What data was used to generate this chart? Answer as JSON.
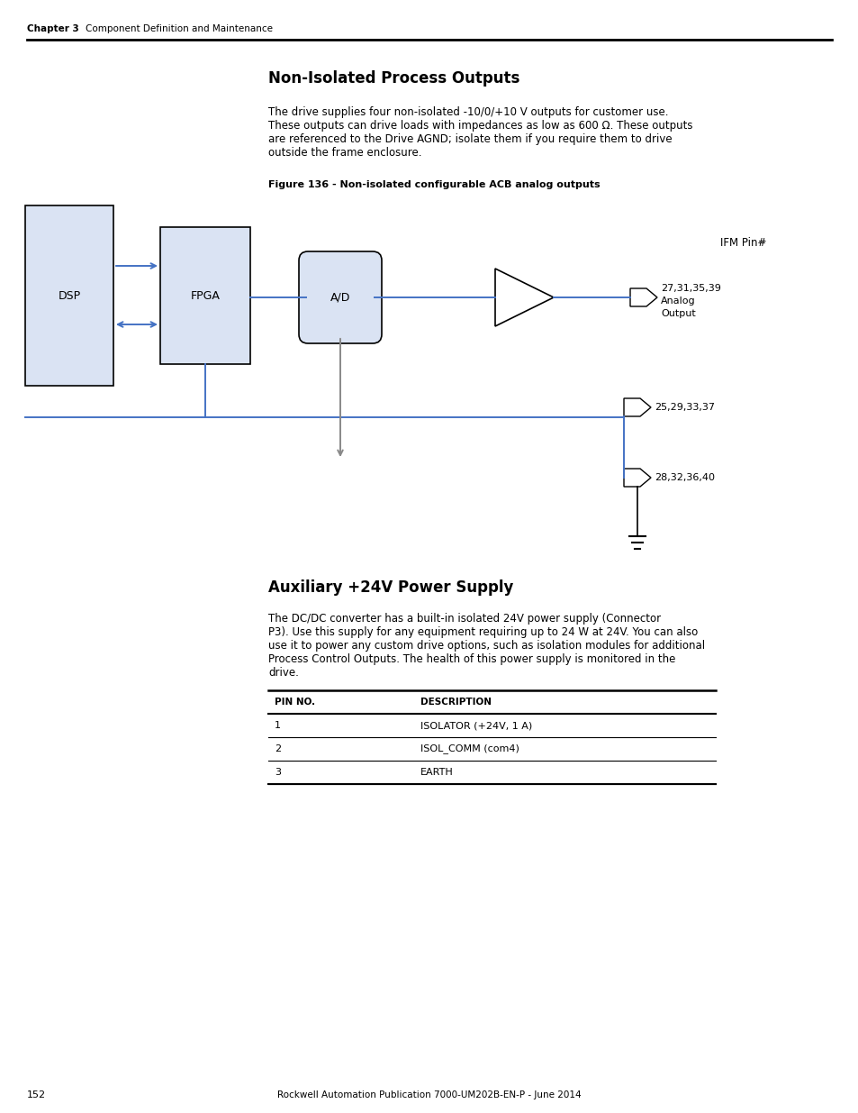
{
  "page_header_chapter": "Chapter 3",
  "page_header_section": "Component Definition and Maintenance",
  "section1_title": "Non-Isolated Process Outputs",
  "section1_para1": "The drive supplies four non-isolated -10/0/+10 V outputs for customer use.",
  "section1_para2": "These outputs can drive loads with impedances as low as 600 Ω. These outputs",
  "section1_para3": "are referenced to the Drive AGND; isolate them if you require them to drive",
  "section1_para4": "outside the frame enclosure.",
  "figure_caption": "Figure 136 - Non-isolated configurable ACB analog outputs",
  "diagram": {
    "dsp_label": "DSP",
    "fpga_label": "FPGA",
    "ad_label": "A/D",
    "ifm_label": "IFM Pin#",
    "pin1_label": "27,31,35,39",
    "pin1_sublabel1": "Analog",
    "pin1_sublabel2": "Output",
    "pin2_label": "25,29,33,37",
    "pin3_label": "28,32,36,40",
    "line_color": "#4472C4",
    "box_fill": "#DAE3F3",
    "box_stroke": "#000000"
  },
  "section2_title": "Auxiliary +24V Power Supply",
  "section2_para1": "The DC/DC converter has a built-in isolated 24V power supply (Connector",
  "section2_para2": "P3). Use this supply for any equipment requiring up to 24 W at 24V. You can also",
  "section2_para3": "use it to power any custom drive options, such as isolation modules for additional",
  "section2_para4": "Process Control Outputs. The health of this power supply is monitored in the",
  "section2_para5": "drive.",
  "table_headers": [
    "PIN NO.",
    "DESCRIPTION"
  ],
  "table_rows": [
    [
      "1",
      "ISOLATOR (+24V, 1 A)"
    ],
    [
      "2",
      "ISOL_COMM (com4)"
    ],
    [
      "3",
      "EARTH"
    ]
  ],
  "footer_text": "Rockwell Automation Publication 7000-UM202B-EN-P - June 2014",
  "page_number": "152",
  "bg_color": "#ffffff",
  "text_color": "#000000"
}
